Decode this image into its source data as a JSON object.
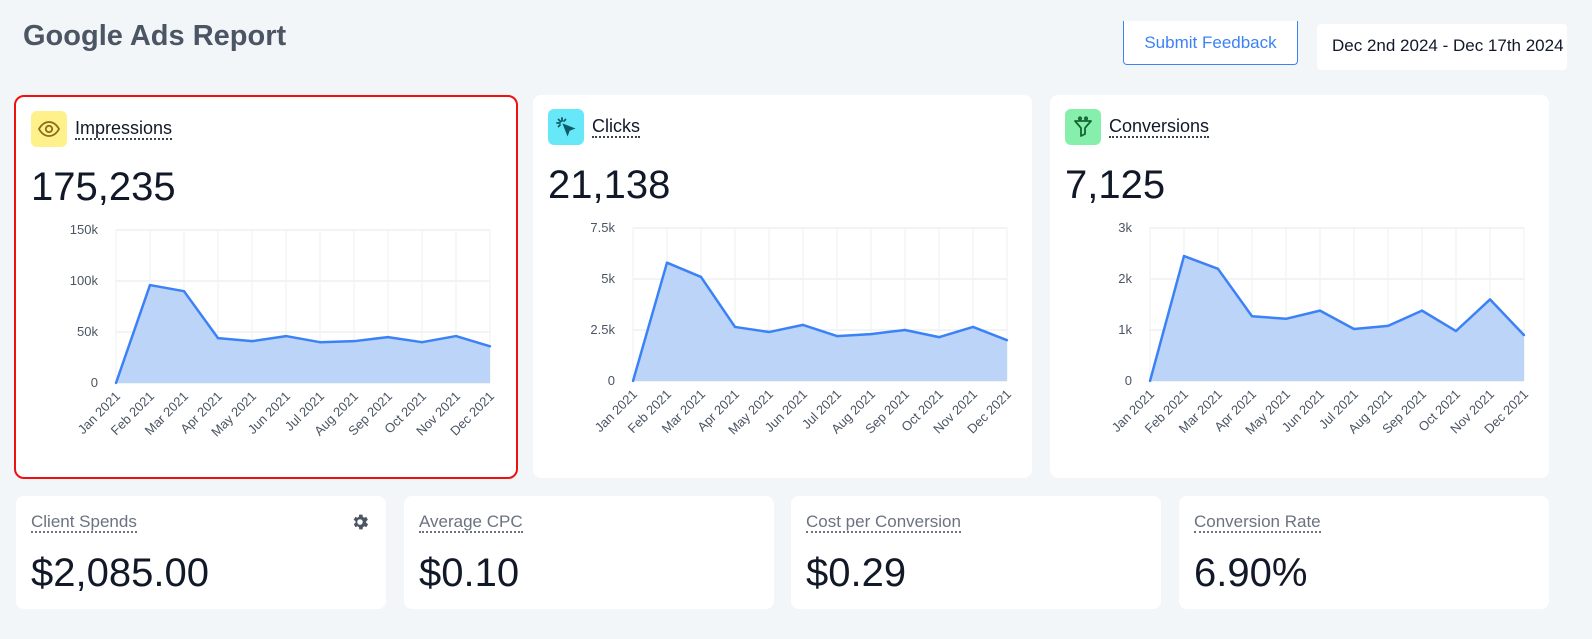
{
  "header": {
    "title": "Google Ads Report",
    "feedback_label": "Submit Feedback",
    "date_range": "Dec 2nd 2024 - Dec 17th 2024"
  },
  "colors": {
    "accent": "#3b82f6",
    "area_fill": "#bcd4f7",
    "impressions_icon_bg": "#fef08a",
    "clicks_icon_bg": "#67e8f9",
    "conversions_icon_bg": "#86efac"
  },
  "metrics": [
    {
      "label": "Impressions",
      "value": "175,235",
      "icon": "eye-icon"
    },
    {
      "label": "Clicks",
      "value": "21,138",
      "icon": "cursor-click-icon"
    },
    {
      "label": "Conversions",
      "value": "7,125",
      "icon": "funnel-icon"
    }
  ],
  "stats": [
    {
      "label": "Client Spends",
      "value": "$2,085.00"
    },
    {
      "label": "Average CPC",
      "value": "$0.10"
    },
    {
      "label": "Cost per Conversion",
      "value": "$0.29"
    },
    {
      "label": "Conversion Rate",
      "value": "6.90%"
    }
  ],
  "chart_data": [
    {
      "type": "area",
      "title": "Impressions",
      "categories": [
        "Jan 2021",
        "Feb 2021",
        "Mar 2021",
        "Apr 2021",
        "May 2021",
        "Jun 2021",
        "Jul 2021",
        "Aug 2021",
        "Sep 2021",
        "Oct 2021",
        "Nov 2021",
        "Dec 2021"
      ],
      "values": [
        0,
        96000,
        90000,
        44000,
        41000,
        46000,
        40000,
        41000,
        45000,
        40000,
        46000,
        36000
      ],
      "ylim": [
        0,
        150000
      ],
      "yticks": [
        "0",
        "50k",
        "100k",
        "150k"
      ]
    },
    {
      "type": "area",
      "title": "Clicks",
      "categories": [
        "Jan 2021",
        "Feb 2021",
        "Mar 2021",
        "Apr 2021",
        "May 2021",
        "Jun 2021",
        "Jul 2021",
        "Aug 2021",
        "Sep 2021",
        "Oct 2021",
        "Nov 2021",
        "Dec 2021"
      ],
      "values": [
        0,
        5800,
        5100,
        2650,
        2400,
        2750,
        2200,
        2300,
        2500,
        2150,
        2650,
        2000
      ],
      "ylim": [
        0,
        7500
      ],
      "yticks": [
        "0",
        "2.5k",
        "5k",
        "7.5k"
      ]
    },
    {
      "type": "area",
      "title": "Conversions",
      "categories": [
        "Jan 2021",
        "Feb 2021",
        "Mar 2021",
        "Apr 2021",
        "May 2021",
        "Jun 2021",
        "Jul 2021",
        "Aug 2021",
        "Sep 2021",
        "Oct 2021",
        "Nov 2021",
        "Dec 2021"
      ],
      "values": [
        0,
        2450,
        2200,
        1270,
        1220,
        1380,
        1020,
        1080,
        1380,
        980,
        1600,
        900
      ],
      "ylim": [
        0,
        3000
      ],
      "yticks": [
        "0",
        "1k",
        "2k",
        "3k"
      ]
    }
  ]
}
